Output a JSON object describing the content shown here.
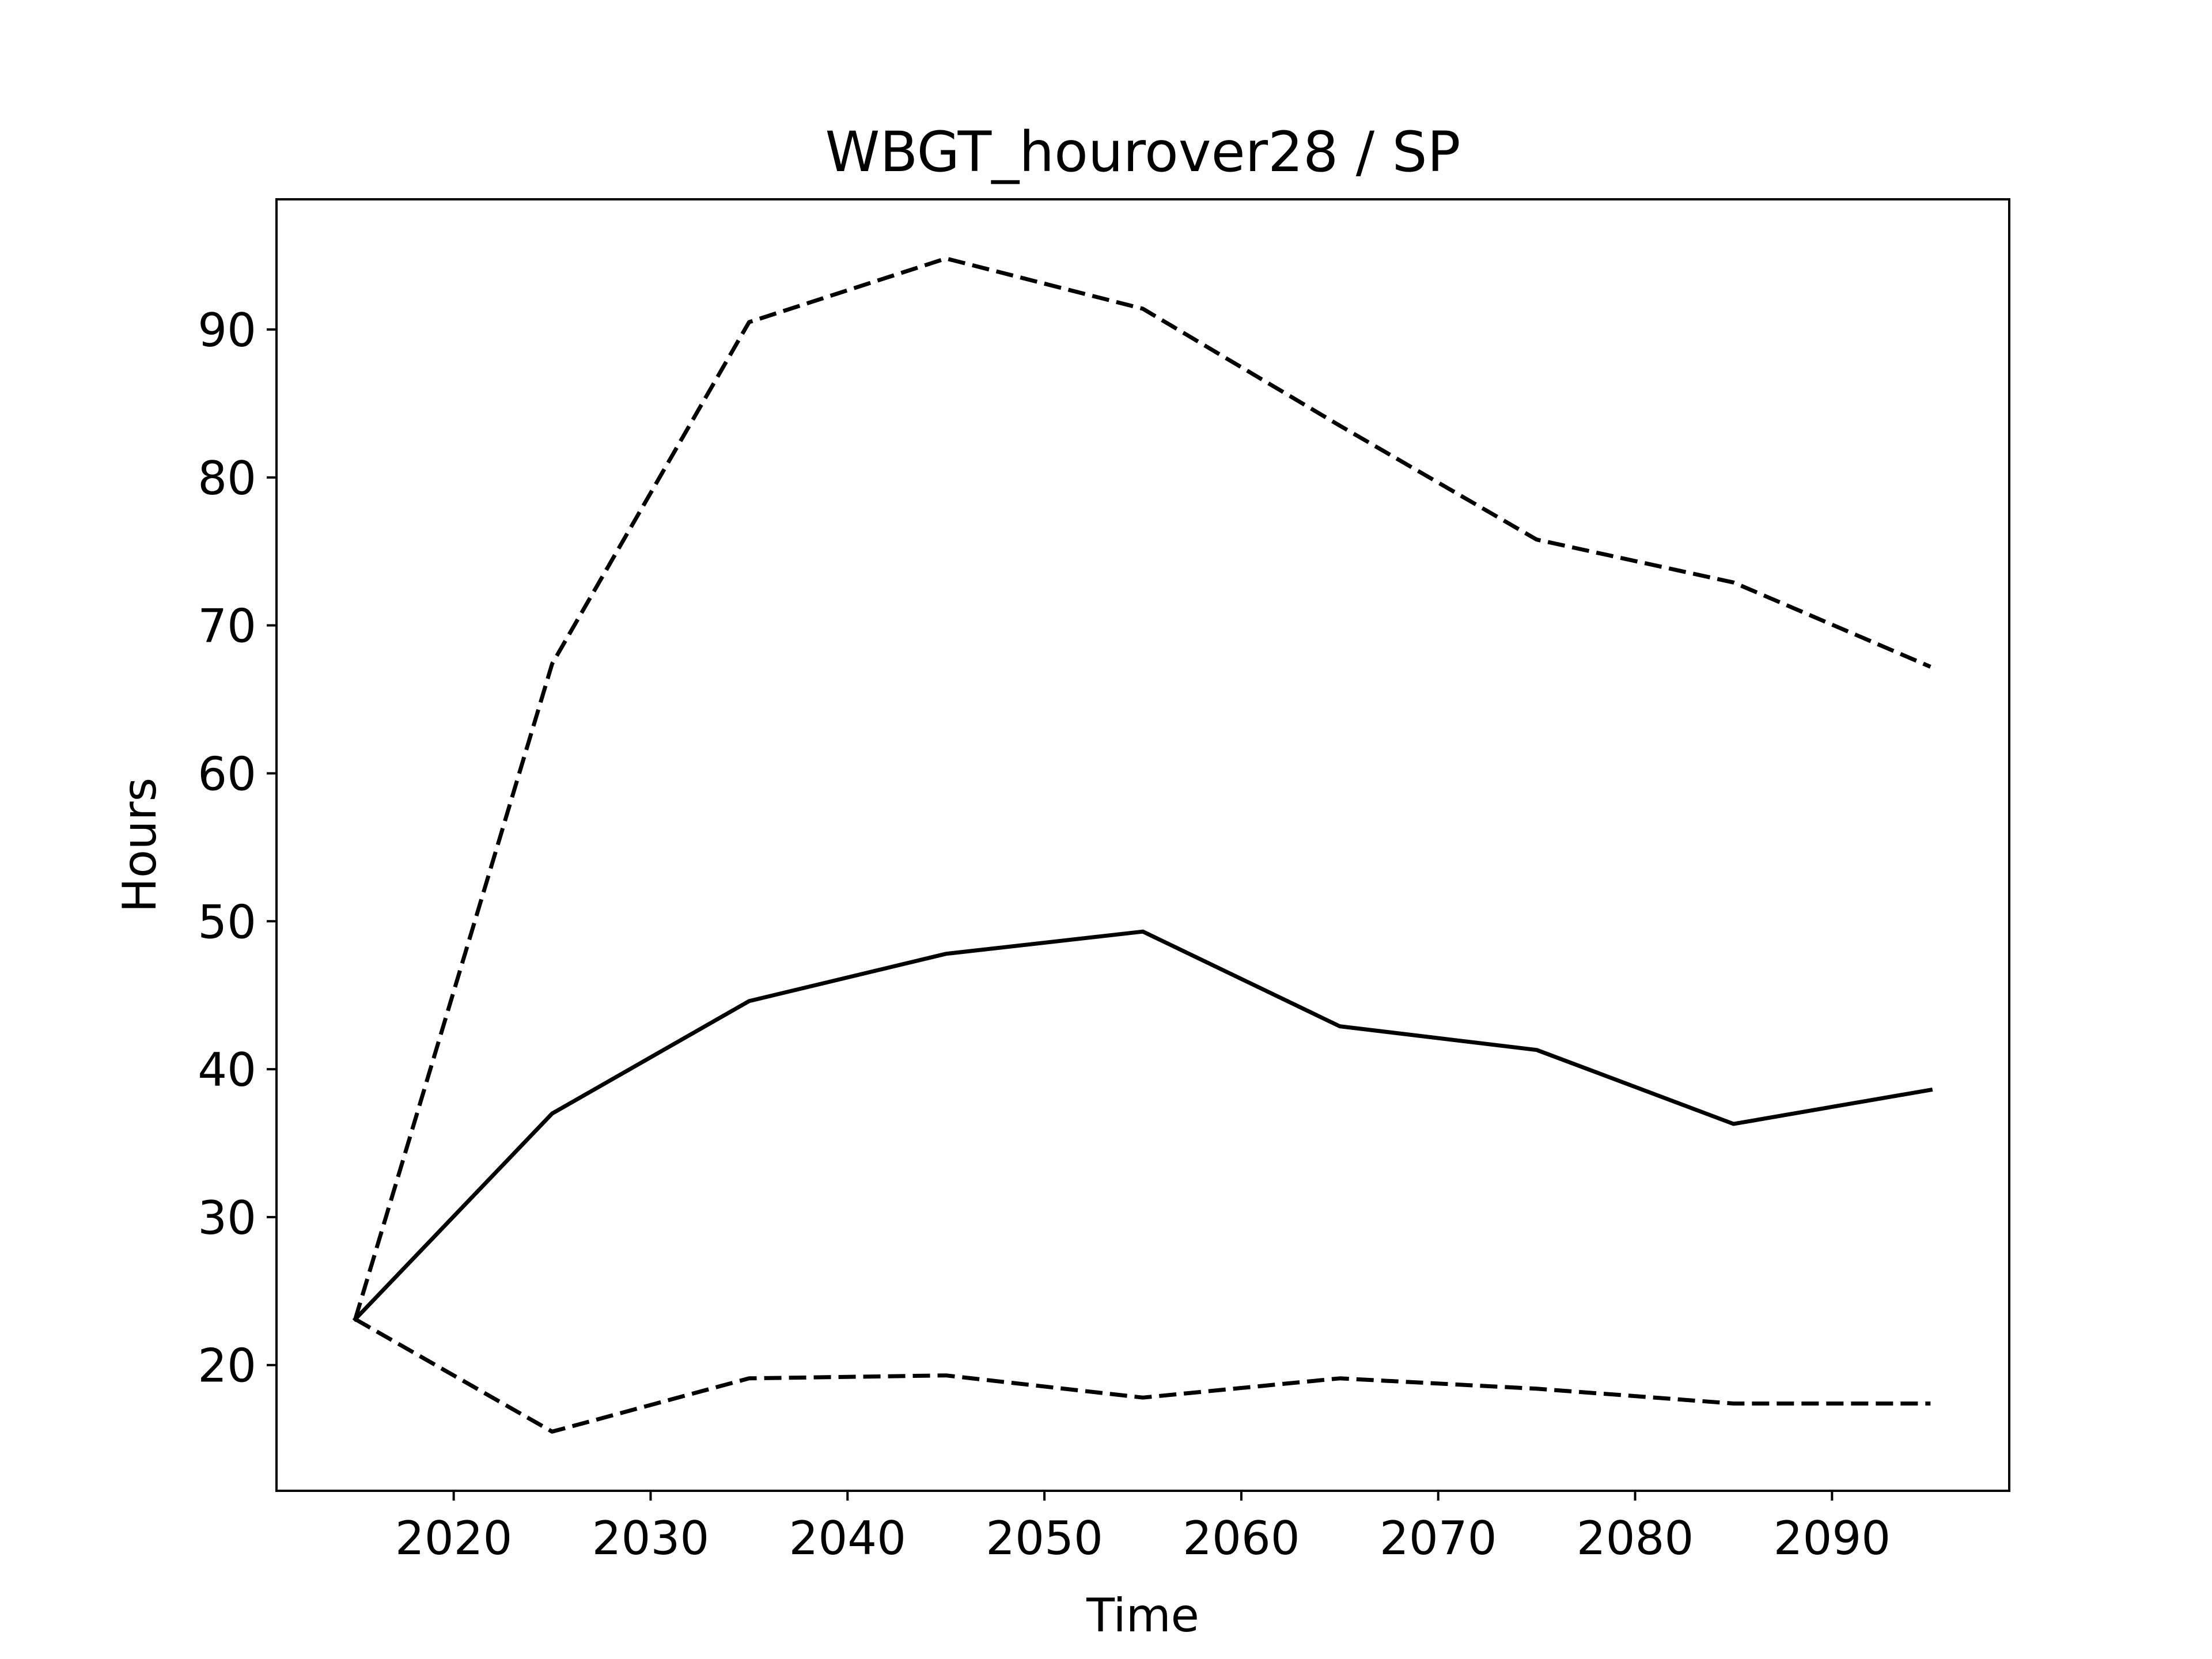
{
  "chart_data": {
    "type": "line",
    "title": "WBGT_hourover28 / SP",
    "xlabel": "Time",
    "ylabel": "Hours",
    "xlim": [
      2011,
      2099
    ],
    "ylim": [
      11.5,
      98.8
    ],
    "xticks": [
      2020,
      2030,
      2040,
      2050,
      2060,
      2070,
      2080,
      2090
    ],
    "yticks": [
      20,
      30,
      40,
      50,
      60,
      70,
      80,
      90
    ],
    "x": [
      2015,
      2025,
      2035,
      2045,
      2055,
      2065,
      2075,
      2085,
      2095
    ],
    "grid": false,
    "line_color": "#000000",
    "series": [
      {
        "style": "solid",
        "values": [
          23.1,
          37.0,
          44.6,
          47.8,
          49.3,
          42.9,
          41.3,
          36.3,
          38.6
        ]
      },
      {
        "style": "dashed",
        "values": [
          23.1,
          67.4,
          90.5,
          94.8,
          91.4,
          83.5,
          75.8,
          72.9,
          67.2
        ]
      },
      {
        "style": "dashed",
        "values": [
          23.1,
          15.5,
          19.1,
          19.3,
          17.8,
          19.1,
          18.4,
          17.4,
          17.4
        ]
      }
    ]
  }
}
